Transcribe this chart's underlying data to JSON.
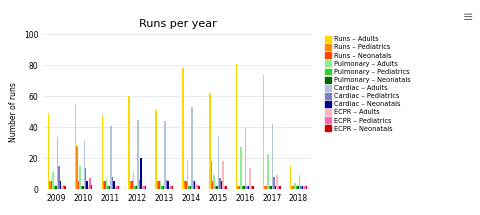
{
  "title": "Runs per year",
  "years": [
    "2009",
    "2010",
    "2011",
    "2012",
    "2013",
    "2014",
    "2015",
    "2016",
    "2017",
    "2018"
  ],
  "series": {
    "Runs – Adults": [
      49,
      55,
      48,
      60,
      51,
      78,
      62,
      81,
      74,
      15
    ],
    "Runs – Pediatrics": [
      5,
      28,
      5,
      5,
      5,
      5,
      18,
      2,
      2,
      2
    ],
    "Runs – Neonatals": [
      5,
      5,
      5,
      5,
      5,
      5,
      5,
      2,
      2,
      2
    ],
    "Pulmonary – Adults": [
      11,
      15,
      7,
      12,
      5,
      19,
      9,
      27,
      23,
      4
    ],
    "Pulmonary – Pediatrics": [
      2,
      2,
      2,
      2,
      2,
      2,
      2,
      2,
      2,
      2
    ],
    "Pulmonary – Neonatals": [
      2,
      2,
      2,
      2,
      2,
      2,
      2,
      2,
      2,
      2
    ],
    "Cardiac – Adults": [
      34,
      31,
      41,
      45,
      44,
      53,
      34,
      39,
      42,
      9
    ],
    "Cardiac – Pediatrics": [
      15,
      14,
      8,
      6,
      6,
      5,
      7,
      2,
      8,
      2
    ],
    "Cardiac – Neonatals": [
      5,
      5,
      5,
      20,
      5,
      5,
      5,
      2,
      2,
      2
    ],
    "ECPR – Adults": [
      2,
      2,
      2,
      2,
      2,
      4,
      18,
      14,
      9,
      2
    ],
    "ECPR – Pediatrics": [
      3,
      7,
      2,
      2,
      2,
      3,
      2,
      2,
      2,
      2
    ],
    "ECPR – Neonatals": [
      2,
      3,
      2,
      2,
      2,
      2,
      2,
      2,
      2,
      2
    ]
  },
  "colors": {
    "Runs – Adults": "#FFD700",
    "Runs – Pediatrics": "#FF8C00",
    "Runs – Neonatals": "#FF4500",
    "Pulmonary – Adults": "#90EE90",
    "Pulmonary – Pediatrics": "#32CD32",
    "Pulmonary – Neonatals": "#006400",
    "Cardiac – Adults": "#B0C4DE",
    "Cardiac – Pediatrics": "#7B7FC4",
    "Cardiac – Neonatals": "#00008B",
    "ECPR – Adults": "#FFB6C1",
    "ECPR – Pediatrics": "#FF69B4",
    "ECPR – Neonatals": "#CC0000"
  },
  "ylabel": "Number of runs",
  "ylim": [
    0,
    100
  ],
  "yticks": [
    0,
    20,
    40,
    60,
    80,
    100
  ],
  "background_color": "#ffffff",
  "grid_color": "#e0e0e0",
  "figsize": [
    4.8,
    2.15
  ],
  "dpi": 100
}
